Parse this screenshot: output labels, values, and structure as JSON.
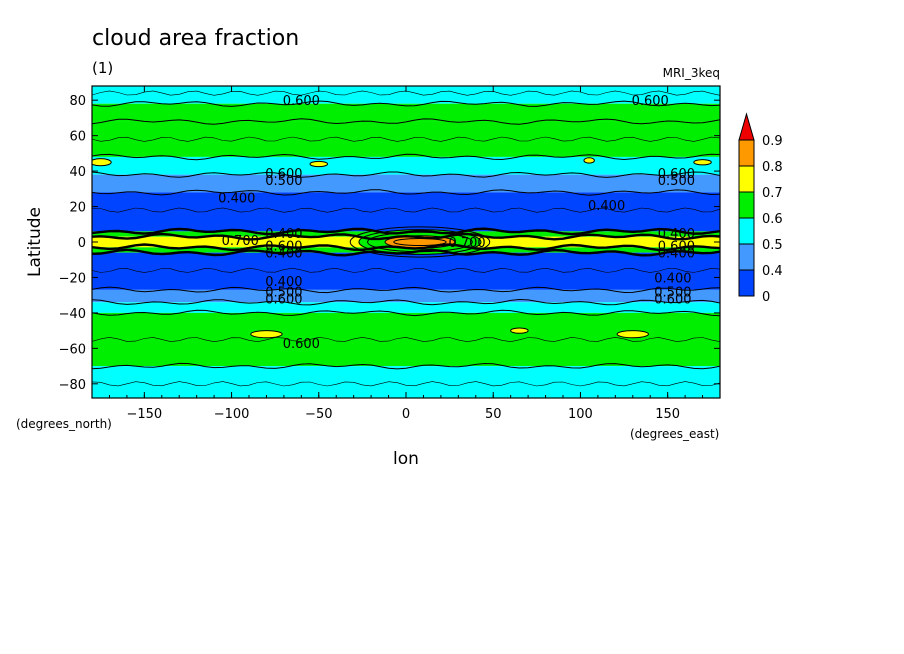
{
  "chart_data": {
    "type": "heatmap",
    "title": "cloud area fraction",
    "subtitle": "(1)",
    "model": "MRI_3keq",
    "xlabel": "lon",
    "ylabel": "Latitude",
    "x_units": "(degrees_east)",
    "y_units": "(degrees_north)",
    "xlim": [
      -180,
      180
    ],
    "ylim": [
      -88,
      88
    ],
    "x_ticks": [
      -150,
      -100,
      -50,
      0,
      50,
      100,
      150
    ],
    "y_ticks": [
      80,
      60,
      40,
      20,
      0,
      -20,
      -40,
      -60,
      -80
    ],
    "legend": {
      "position": "right",
      "levels": [
        "0",
        "0.4",
        "0.5",
        "0.6",
        "0.7",
        "0.8",
        "0.9"
      ],
      "colors": [
        "#0044ff",
        "#4499ff",
        "#00ffff",
        "#00ee00",
        "#ffff00",
        "#ff9900",
        "#ee0000"
      ]
    },
    "colors": {
      "lt04": "#0044ff",
      "b0405": "#4499ff",
      "b0506": "#00ffff",
      "b0607": "#00ee00",
      "b0708": "#ffff00",
      "b0809": "#ff9900",
      "gt09": "#ee0000"
    },
    "bands": [
      {
        "lat_top": 88,
        "lat_bottom": 78,
        "band": "b0506"
      },
      {
        "lat_top": 78,
        "lat_bottom": 68,
        "band": "b0607"
      },
      {
        "lat_top": 68,
        "lat_bottom": 48,
        "band": "b0607"
      },
      {
        "lat_top": 48,
        "lat_bottom": 38,
        "band": "b0506"
      },
      {
        "lat_top": 38,
        "lat_bottom": 28,
        "band": "b0405"
      },
      {
        "lat_top": 28,
        "lat_bottom": 6,
        "band": "lt04"
      },
      {
        "lat_top": 6,
        "lat_bottom": 3,
        "band": "b0607"
      },
      {
        "lat_top": 3,
        "lat_bottom": -3,
        "band": "b0708"
      },
      {
        "lat_top": -3,
        "lat_bottom": -6,
        "band": "b0607"
      },
      {
        "lat_top": -6,
        "lat_bottom": -27,
        "band": "lt04"
      },
      {
        "lat_top": -27,
        "lat_bottom": -34,
        "band": "b0405"
      },
      {
        "lat_top": -34,
        "lat_bottom": -40,
        "band": "b0506"
      },
      {
        "lat_top": -40,
        "lat_bottom": -70,
        "band": "b0607"
      },
      {
        "lat_top": -70,
        "lat_bottom": -88,
        "band": "b0506"
      }
    ],
    "features": [
      {
        "type": "ellipse",
        "lon": 8,
        "lat": 0,
        "rx_deg": 35,
        "ry_deg": 7,
        "band": "b0607"
      },
      {
        "type": "ellipse",
        "lon": 8,
        "lat": 0,
        "rx_deg": 20,
        "ry_deg": 3.5,
        "band": "b0809"
      },
      {
        "type": "ellipse",
        "lon": -175,
        "lat": 45,
        "rx_deg": 6,
        "ry_deg": 2,
        "band": "b0708"
      },
      {
        "type": "ellipse",
        "lon": -50,
        "lat": 44,
        "rx_deg": 5,
        "ry_deg": 1.5,
        "band": "b0708"
      },
      {
        "type": "ellipse",
        "lon": 170,
        "lat": 45,
        "rx_deg": 5,
        "ry_deg": 1.5,
        "band": "b0708"
      },
      {
        "type": "ellipse",
        "lon": 105,
        "lat": 46,
        "rx_deg": 3,
        "ry_deg": 1.5,
        "band": "b0708"
      },
      {
        "type": "ellipse",
        "lon": -80,
        "lat": -52,
        "rx_deg": 9,
        "ry_deg": 2,
        "band": "b0708"
      },
      {
        "type": "ellipse",
        "lon": 130,
        "lat": -52,
        "rx_deg": 9,
        "ry_deg": 2,
        "band": "b0708"
      },
      {
        "type": "ellipse",
        "lon": 65,
        "lat": -50,
        "rx_deg": 5,
        "ry_deg": 1.5,
        "band": "b0708"
      }
    ],
    "contour_labels": [
      {
        "text": "0.600",
        "lon": -60,
        "lat": 80
      },
      {
        "text": "0.600",
        "lon": 140,
        "lat": 80
      },
      {
        "text": "0.600",
        "lon": -70,
        "lat": 39
      },
      {
        "text": "0.500",
        "lon": -70,
        "lat": 35
      },
      {
        "text": "0.400",
        "lon": -97,
        "lat": 25
      },
      {
        "text": "0.600",
        "lon": 155,
        "lat": 39
      },
      {
        "text": "0.500",
        "lon": 155,
        "lat": 35
      },
      {
        "text": "0.400",
        "lon": 115,
        "lat": 21
      },
      {
        "text": "0.400",
        "lon": -70,
        "lat": 5
      },
      {
        "text": "0.700",
        "lon": -95,
        "lat": 1
      },
      {
        "text": "0.600",
        "lon": -70,
        "lat": -2
      },
      {
        "text": "0.400",
        "lon": -70,
        "lat": -6
      },
      {
        "text": "0.700",
        "lon": 35,
        "lat": 0
      },
      {
        "text": "0.400",
        "lon": 155,
        "lat": 5
      },
      {
        "text": "0.600",
        "lon": 155,
        "lat": -2
      },
      {
        "text": "0.400",
        "lon": 155,
        "lat": -6
      },
      {
        "text": "0.400",
        "lon": -70,
        "lat": -22
      },
      {
        "text": "0.500",
        "lon": -70,
        "lat": -28
      },
      {
        "text": "0.600",
        "lon": -70,
        "lat": -32
      },
      {
        "text": "0.400",
        "lon": 153,
        "lat": -20
      },
      {
        "text": "0.500",
        "lon": 153,
        "lat": -28
      },
      {
        "text": "0.600",
        "lon": 153,
        "lat": -32
      },
      {
        "text": "0.600",
        "lon": -60,
        "lat": -57
      }
    ]
  }
}
